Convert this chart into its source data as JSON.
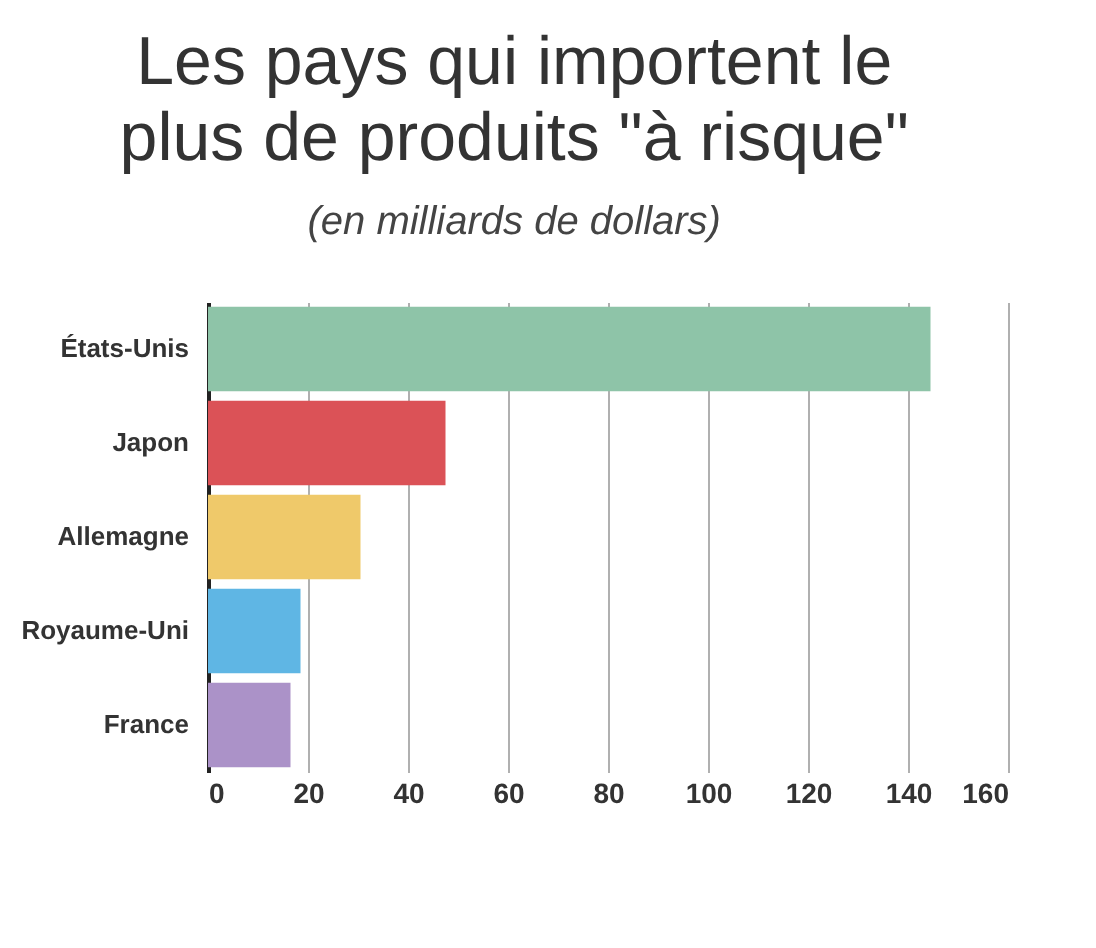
{
  "chart_data": {
    "type": "bar",
    "orientation": "horizontal",
    "title": [
      "Les pays qui importent le",
      "plus de produits \"à risque\""
    ],
    "subtitle": "(en milliards de dollars)",
    "categories": [
      "États-Unis",
      "Japon",
      "Allemagne",
      "Royaume-Uni",
      "France"
    ],
    "values": [
      144.5,
      47.5,
      30.5,
      18.5,
      16.5
    ],
    "colors": [
      "#8ec4a8",
      "#db5257",
      "#efc96a",
      "#5fb6e4",
      "#ab92c8"
    ],
    "xlim": [
      0,
      160
    ],
    "xticks": [
      0,
      20,
      40,
      60,
      80,
      100,
      120,
      140,
      160
    ],
    "grid": "x"
  }
}
